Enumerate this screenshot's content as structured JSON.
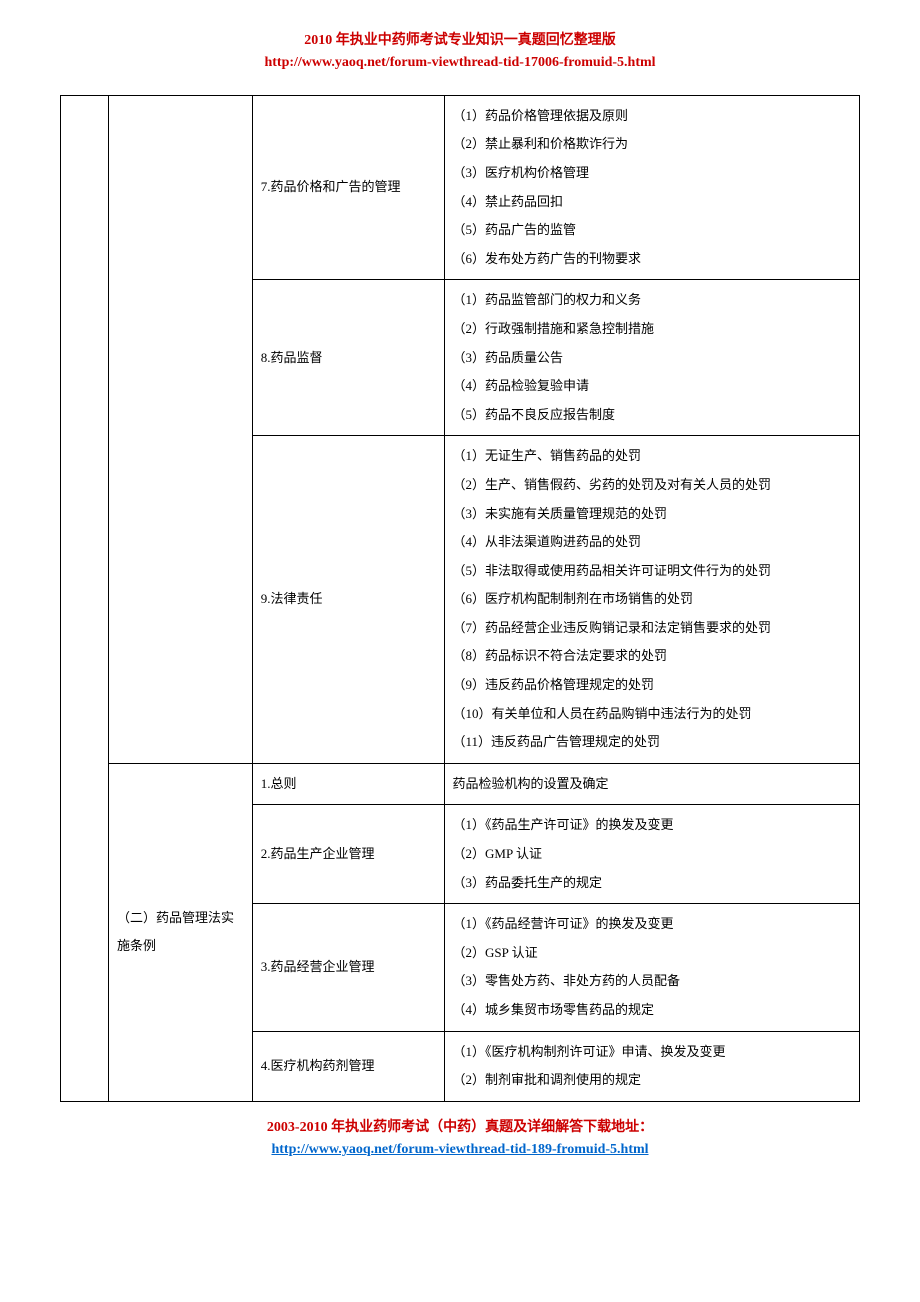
{
  "header": {
    "title": "2010 年执业中药师考试专业知识一真题回忆整理版",
    "url": "http://www.yaoq.net/forum-viewthread-tid-17006-fromuid-5.html"
  },
  "footer": {
    "title": "2003-2010 年执业药师考试（中药）真题及详细解答下载地址：",
    "url": "http://www.yaoq.net/forum-viewthread-tid-189-fromuid-5.html"
  },
  "rows": [
    {
      "col3": "7.药品价格和广告的管理",
      "details": [
        "（1）药品价格管理依据及原则",
        "（2）禁止暴利和价格欺诈行为",
        "（3）医疗机构价格管理",
        "（4）禁止药品回扣",
        "（5）药品广告的监管",
        "（6）发布处方药广告的刊物要求"
      ]
    },
    {
      "col3": "8.药品监督",
      "details": [
        "（1）药品监管部门的权力和义务",
        "（2）行政强制措施和紧急控制措施",
        "（3）药品质量公告",
        "（4）药品检验复验申请",
        "（5）药品不良反应报告制度"
      ]
    },
    {
      "col3": "9.法律责任",
      "details": [
        "（1）无证生产、销售药品的处罚",
        "（2）生产、销售假药、劣药的处罚及对有关人员的处罚",
        "（3）未实施有关质量管理规范的处罚",
        "（4）从非法渠道购进药品的处罚",
        "（5）非法取得或使用药品相关许可证明文件行为的处罚",
        "（6）医疗机构配制制剂在市场销售的处罚",
        "（7）药品经营企业违反购销记录和法定销售要求的处罚",
        "（8）药品标识不符合法定要求的处罚",
        "（9）违反药品价格管理规定的处罚",
        "（10）有关单位和人员在药品购销中违法行为的处罚",
        "（11）违反药品广告管理规定的处罚"
      ]
    },
    {
      "col2": "（二）药品管理法实施条例",
      "sub": [
        {
          "col3": "1.总则",
          "details": [
            "药品检验机构的设置及确定"
          ]
        },
        {
          "col3": "2.药品生产企业管理",
          "details": [
            "（1）《药品生产许可证》的换发及变更",
            "（2）GMP 认证",
            "（3）药品委托生产的规定"
          ]
        },
        {
          "col3": "3.药品经营企业管理",
          "details": [
            "（1）《药品经营许可证》的换发及变更",
            "（2）GSP 认证",
            "（3）零售处方药、非处方药的人员配备",
            "（4）城乡集贸市场零售药品的规定"
          ]
        },
        {
          "col3": "4.医疗机构药剂管理",
          "details": [
            "（1）《医疗机构制剂许可证》申请、换发及变更",
            "（2）制剂审批和调剂使用的规定"
          ]
        }
      ]
    }
  ]
}
